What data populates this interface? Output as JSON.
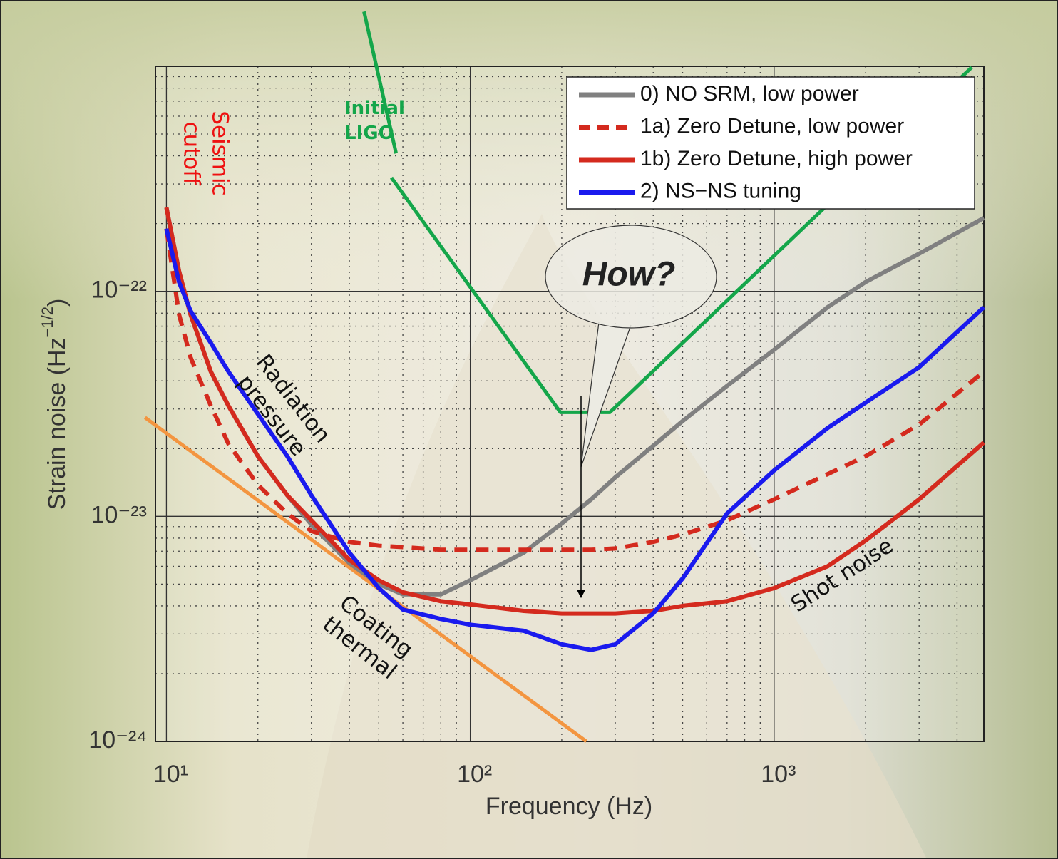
{
  "chart_data": {
    "type": "line",
    "xlabel": "Frequency (Hz)",
    "ylabel": {
      "text": "Strain noise (Hz",
      "sup": "−1/2",
      "end": ")"
    },
    "log_x": true,
    "log_y": true,
    "grid": true,
    "legend": "upper right",
    "xlim": [
      9.2,
      4900
    ],
    "ylim": [
      1e-24,
      1e-21
    ],
    "xticks": [
      {
        "value": 10,
        "label": "10¹"
      },
      {
        "value": 100,
        "label": "10²"
      },
      {
        "value": 1000,
        "label": "10³"
      }
    ],
    "yticks": [
      {
        "value": 1e-24,
        "label": "10⁻²⁴"
      },
      {
        "value": 1e-23,
        "label": "10⁻²³"
      },
      {
        "value": 1e-22,
        "label": "10⁻²²"
      }
    ],
    "x": [
      10,
      11,
      12,
      14,
      16,
      20,
      25,
      30,
      40,
      50,
      60,
      80,
      100,
      150,
      200,
      250,
      300,
      400,
      500,
      700,
      1000,
      1500,
      2000,
      3000,
      4900
    ],
    "series": [
      {
        "name": "0) NO SRM, low power",
        "color": "#808080",
        "dashed": false,
        "values": [
          2.36e-22,
          1.23e-22,
          7.9e-23,
          4.4e-23,
          3.1e-23,
          1.85e-23,
          1.24e-23,
          9.2e-24,
          6.2e-24,
          5e-24,
          4.5e-24,
          4.5e-24,
          5.2e-24,
          6.9e-24,
          9.3e-24,
          1.19e-23,
          1.49e-23,
          2.06e-23,
          2.65e-23,
          3.8e-23,
          5.5e-23,
          8.5e-23,
          1.1e-22,
          1.47e-22,
          2.12e-22
        ]
      },
      {
        "name": "1a) Zero Detune, low power",
        "color": "#d42a1e",
        "dashed": true,
        "values": [
          1.9e-22,
          7.9e-23,
          5.1e-23,
          3.1e-23,
          2.1e-23,
          1.38e-23,
          1.03e-23,
          8.6e-24,
          7.7e-24,
          7.4e-24,
          7.3e-24,
          7.1e-24,
          7.1e-24,
          7.1e-24,
          7.1e-24,
          7.1e-24,
          7.2e-24,
          7.7e-24,
          8.3e-24,
          9.6e-24,
          1.19e-23,
          1.54e-23,
          1.85e-23,
          2.56e-23,
          4.4e-23
        ]
      },
      {
        "name": "1b) Zero Detune, high power",
        "color": "#d42a1e",
        "dashed": false,
        "values": [
          2.36e-22,
          1.23e-22,
          7.9e-23,
          4.4e-23,
          3.1e-23,
          1.85e-23,
          1.24e-23,
          9.6e-24,
          6.4e-24,
          5.2e-24,
          4.6e-24,
          4.2e-24,
          4.06e-24,
          3.8e-24,
          3.7e-24,
          3.7e-24,
          3.7e-24,
          3.8e-24,
          4e-24,
          4.2e-24,
          4.8e-24,
          6e-24,
          7.8e-24,
          1.19e-23,
          2.13e-23
        ]
      },
      {
        "name": "2) NS−NS tuning",
        "color": "#1a1aee",
        "dashed": false,
        "values": [
          1.9e-22,
          1.1e-22,
          8.2e-23,
          5.9e-23,
          4.4e-23,
          2.85e-23,
          1.85e-23,
          1.24e-23,
          6.9e-24,
          4.8e-24,
          3.85e-24,
          3.5e-24,
          3.3e-24,
          3.1e-24,
          2.7e-24,
          2.55e-24,
          2.7e-24,
          3.7e-24,
          5.3e-24,
          1.03e-23,
          1.6e-23,
          2.47e-23,
          3.2e-23,
          4.6e-23,
          8.5e-23
        ]
      }
    ],
    "reference_lines": [
      {
        "color": "#14a64a",
        "x": [
          44.7,
          57,
          null,
          55,
          198,
          288,
          4470
        ],
        "values": [
          1.75e-21,
          4.1e-22,
          null,
          3.2e-22,
          2.9e-23,
          2.9e-23,
          9.9e-22
        ]
      },
      {
        "color": "#f39540",
        "x": [
          8.5,
          241
        ],
        "values": [
          2.75e-23,
          1e-24
        ]
      }
    ],
    "annotations": [
      {
        "lines": [
          "Seismic",
          "cutoff"
        ],
        "color": "#ee1111"
      },
      {
        "lines": [
          "Initial",
          "LIGO"
        ],
        "color": "#14a64a"
      },
      {
        "lines": [
          "Radiation",
          "pressure"
        ],
        "color": "#111111"
      },
      {
        "lines": [
          "Coating",
          "thermal"
        ],
        "color": "#111111"
      },
      {
        "lines": [
          "Shot noise"
        ],
        "color": "#111111"
      },
      {
        "lines": [
          "How?"
        ],
        "color": "#222222"
      }
    ]
  }
}
